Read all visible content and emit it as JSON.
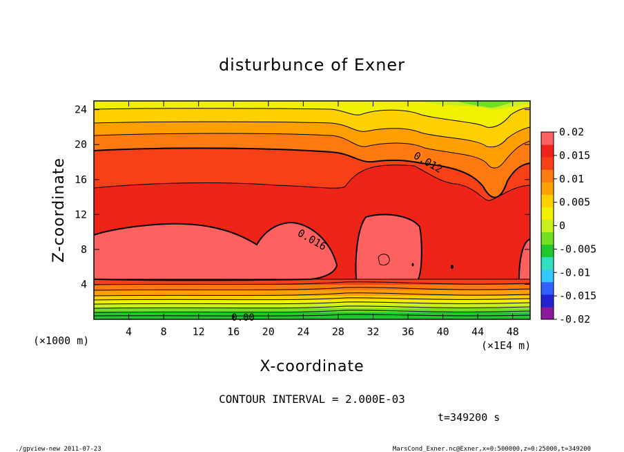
{
  "chart_data": {
    "type": "heatmap",
    "title": "disturbunce of Exner",
    "xlabel": "X-coordinate",
    "ylabel": "Z-coordinate",
    "x_unit": "(×1000 m)",
    "x_unit_right": "(×1E4 m)",
    "x_ticks": [
      4,
      8,
      12,
      16,
      20,
      24,
      28,
      32,
      36,
      40,
      44,
      48
    ],
    "y_ticks": [
      4,
      8,
      12,
      16,
      20,
      24
    ],
    "xlim": [
      0,
      50
    ],
    "ylim": [
      0,
      25
    ],
    "colorbar": {
      "ticks": [
        "0.02",
        "0.015",
        "0.01",
        "0.005",
        "0",
        "-0.005",
        "-0.01",
        "-0.015",
        "-0.02"
      ],
      "range": [
        -0.02,
        0.02
      ],
      "colors": [
        "#8b1a9e",
        "#2222d0",
        "#3060ff",
        "#30c8ff",
        "#30e0c0",
        "#20c830",
        "#70e020",
        "#c8f020",
        "#f0f000",
        "#ffd000",
        "#ffa000",
        "#ff7a10",
        "#f84018",
        "#ee2418",
        "#ff6060"
      ]
    },
    "contour_labels": [
      "0.012",
      "0.016",
      "0.00"
    ],
    "contour_interval_text": "CONTOUR INTERVAL = 2.000E-03",
    "time_text": "t=349200 s"
  },
  "footer": {
    "left": "./gpview-new  2011-07-23",
    "right": "MarsCond_Exner.nc@Exner,x=0:500000,z=0:25000,t=349200"
  }
}
